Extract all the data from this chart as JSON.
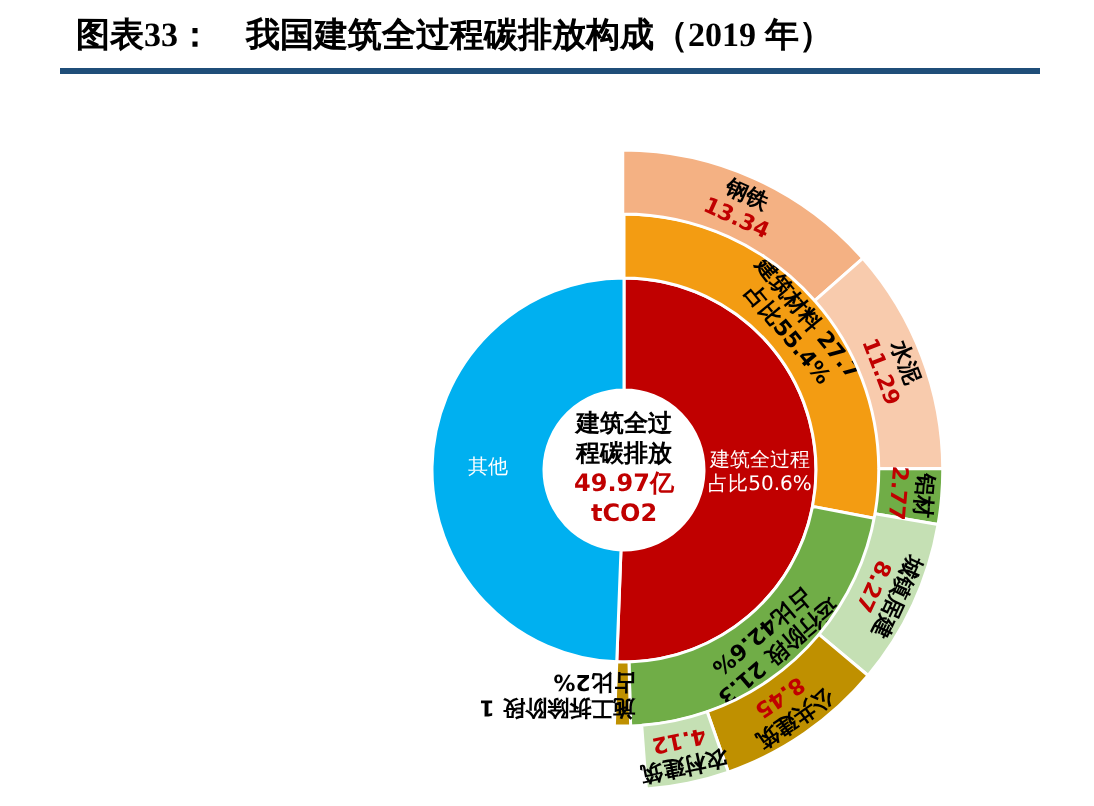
{
  "chart_data": [
    {
      "type": "donut",
      "title": "图表33：　我国建筑全过程碳排放构成（2019 年）",
      "annotations": [
        "建筑全过程碳排放",
        "49.97亿",
        "tCO2"
      ],
      "categories": [
        "建筑全过程",
        "其他"
      ],
      "values": [
        50.6,
        49.4
      ],
      "colors": [
        "#c00000",
        "#00b0f0"
      ],
      "value_labels": [
        "占比50.6%",
        null
      ]
    },
    {
      "type": "other",
      "categories": [
        "建筑材料",
        "运行阶段",
        "施工拆除阶段"
      ],
      "values": [
        27.7,
        21.3,
        1
      ],
      "colors": [
        "#f39c12",
        "#70ad47",
        "#bf9000"
      ],
      "data_labels": true,
      "annotations": [
        {
          "text": "占比55.4%",
          "x": "建筑材料"
        },
        {
          "text": "占比42.6%",
          "x": "运行阶段"
        },
        {
          "text": "占比2%",
          "x": "施工拆除阶段"
        }
      ]
    },
    {
      "type": "other",
      "categories": [
        "钢铁",
        "水泥",
        "铝材",
        "城镇居建",
        "公共建筑",
        "农村建筑"
      ],
      "values": [
        13.34,
        11.29,
        2.77,
        8.27,
        8.45,
        4.12
      ],
      "colors": [
        "#f4b183",
        "#f8cbad",
        "#70ad47",
        "#c5e0b4",
        "#bf9000",
        "#c5e0b4"
      ],
      "data_labels": true
    }
  ]
}
